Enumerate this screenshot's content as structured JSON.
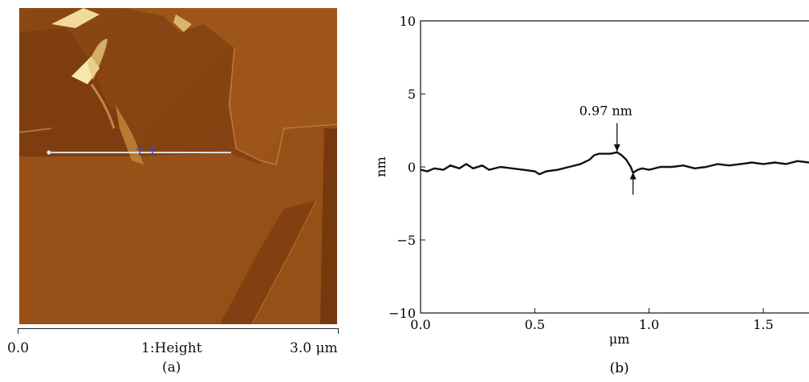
{
  "figure_a": {
    "caption": "(a)",
    "scale_start": "0.0",
    "scale_end": "3.0 μm",
    "channel_label": "1:Height",
    "colors": {
      "dark": "#7a3a0f",
      "mid": "#a05a1e",
      "light": "#f3e2a0"
    }
  },
  "figure_b": {
    "caption": "(b)",
    "annotation": "0.97 nm",
    "chart_data": {
      "type": "line",
      "xlabel": "μm",
      "ylabel": "nm",
      "xlim": [
        0.0,
        1.7
      ],
      "ylim": [
        -10,
        10
      ],
      "xticks": [
        "0.0",
        "0.5",
        "1.0",
        "1.5"
      ],
      "yticks": [
        "−10",
        "−5",
        "0",
        "5",
        "10"
      ],
      "series": [
        {
          "x": [
            0.0,
            0.03,
            0.06,
            0.1,
            0.13,
            0.17,
            0.2,
            0.23,
            0.27,
            0.3,
            0.35,
            0.4,
            0.45,
            0.5,
            0.52,
            0.55,
            0.6,
            0.65,
            0.7,
            0.74,
            0.76,
            0.78,
            0.8,
            0.83,
            0.86,
            0.88,
            0.9,
            0.92,
            0.93,
            0.95,
            0.97,
            1.0,
            1.05,
            1.1,
            1.15,
            1.2,
            1.25,
            1.3,
            1.35,
            1.4,
            1.45,
            1.5,
            1.55,
            1.6,
            1.65,
            1.7
          ],
          "y": [
            -0.2,
            -0.3,
            -0.1,
            -0.2,
            0.1,
            -0.1,
            0.2,
            -0.1,
            0.1,
            -0.2,
            0.0,
            -0.1,
            -0.2,
            -0.3,
            -0.5,
            -0.3,
            -0.2,
            0.0,
            0.2,
            0.5,
            0.8,
            0.9,
            0.9,
            0.9,
            1.0,
            0.8,
            0.5,
            0.0,
            -0.4,
            -0.2,
            -0.1,
            -0.2,
            0.0,
            0.0,
            0.1,
            -0.1,
            0.0,
            0.2,
            0.1,
            0.2,
            0.3,
            0.2,
            0.3,
            0.2,
            0.4,
            0.3
          ]
        }
      ],
      "grid": false
    }
  }
}
